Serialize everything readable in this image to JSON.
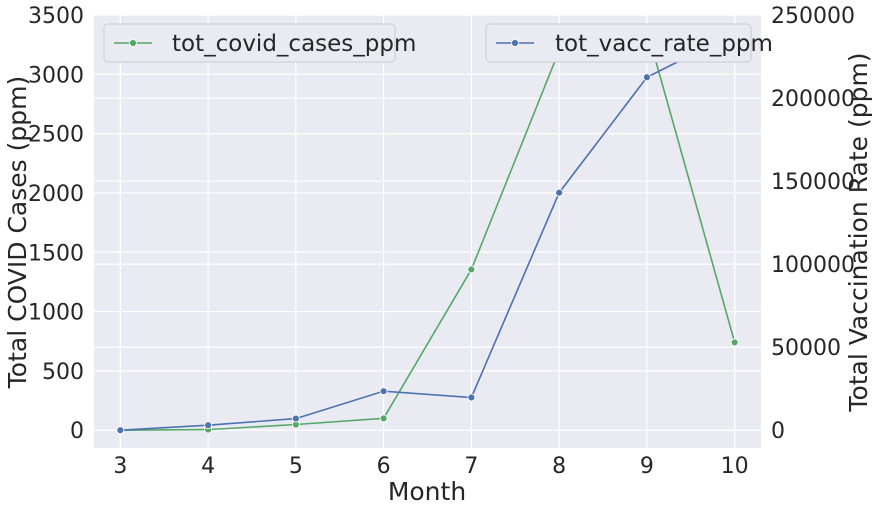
{
  "chart_data": {
    "type": "line",
    "xlabel": "Month",
    "ylabel_left": "Total COVID Cases (ppm)",
    "ylabel_right": "Total Vaccination Rate (ppm)",
    "x": [
      3,
      4,
      5,
      6,
      7,
      8,
      9,
      10
    ],
    "xlim": [
      2.7,
      10.3
    ],
    "ylim_left": [
      -150,
      3500
    ],
    "ylim_right": [
      -10714,
      250000
    ],
    "yticks_left": [
      0,
      500,
      1000,
      1500,
      2000,
      2500,
      3000,
      3500
    ],
    "yticks_right": [
      0,
      50000,
      100000,
      150000,
      200000,
      250000
    ],
    "grid": true,
    "background": "#eaeaf2",
    "series": [
      {
        "name": "tot_covid_cases_ppm",
        "axis": "left",
        "color": "#55a868",
        "values": [
          0,
          5,
          48,
          100,
          1355,
          3200,
          3380,
          740
        ],
        "legend_position": "top-left"
      },
      {
        "name": "tot_vacc_rate_ppm",
        "axis": "right",
        "color": "#4c72b0",
        "values": [
          0,
          3000,
          7000,
          23500,
          19700,
          143000,
          212500,
          239000
        ],
        "legend_position": "top-right"
      }
    ]
  }
}
